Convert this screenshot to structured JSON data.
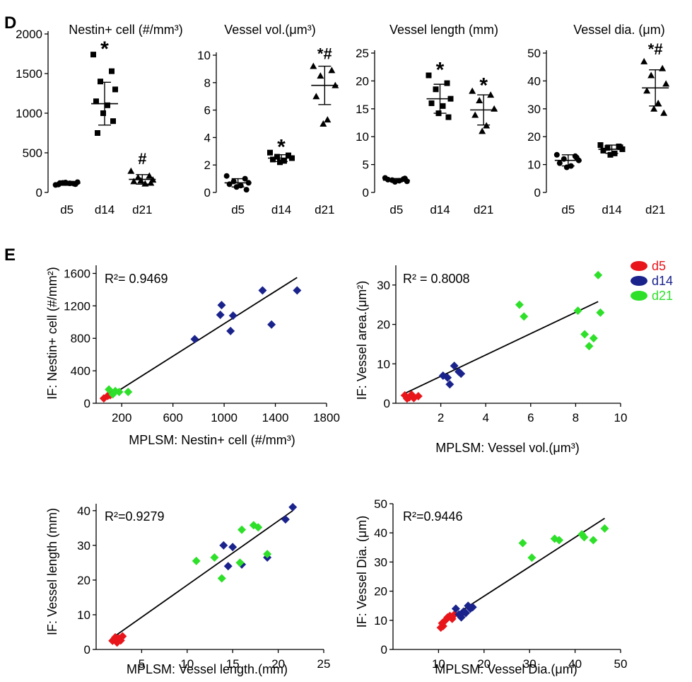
{
  "panel_labels": {
    "d": "D",
    "e": "E"
  },
  "colors": {
    "d5": "#e8161b",
    "d14": "#1a238c",
    "d21": "#2ee02a",
    "marker": "#000000"
  },
  "legend": {
    "position": "top-right",
    "items": [
      "d5",
      "d14",
      "d21"
    ]
  },
  "chart_data": [
    {
      "panel": "D",
      "type": "scatter",
      "title": "Nestin+ cell (#/mm³)",
      "categories": [
        "d5",
        "d14",
        "d21"
      ],
      "ylim": [
        0,
        2000
      ],
      "yticks": [
        0,
        500,
        1000,
        1500,
        2000
      ],
      "ytick_labels": [
        "0",
        "500",
        "1000",
        "1500",
        "2000"
      ],
      "groups": [
        {
          "name": "d5",
          "marker": "circle",
          "mean": 115,
          "sd": 25,
          "points": [
            95,
            110,
            120,
            130,
            100,
            115,
            125,
            105,
            118
          ],
          "annotation": ""
        },
        {
          "name": "d14",
          "marker": "square",
          "mean": 1120,
          "sd": 270,
          "points": [
            1740,
            1530,
            1400,
            1300,
            1150,
            1100,
            1000,
            900,
            750
          ],
          "annotation": "*"
        },
        {
          "name": "d21",
          "marker": "triangle",
          "mean": 165,
          "sd": 60,
          "points": [
            270,
            210,
            190,
            160,
            140,
            110,
            150,
            120
          ],
          "annotation": "#"
        }
      ]
    },
    {
      "panel": "D",
      "type": "scatter",
      "title": "Vessel vol.(μm³)",
      "categories": [
        "d5",
        "d14",
        "d21"
      ],
      "ylim": [
        0,
        10
      ],
      "yticks": [
        0,
        2,
        4,
        6,
        8,
        10
      ],
      "ytick_labels": [
        "0",
        "2",
        "4",
        "6",
        "8",
        "10"
      ],
      "groups": [
        {
          "name": "d5",
          "marker": "circle",
          "mean": 0.7,
          "sd": 0.3,
          "points": [
            1.2,
            1.0,
            0.8,
            0.7,
            0.6,
            0.5,
            0.4,
            0.2
          ],
          "annotation": ""
        },
        {
          "name": "d14",
          "marker": "square",
          "mean": 2.5,
          "sd": 0.25,
          "points": [
            2.9,
            2.7,
            2.6,
            2.5,
            2.4,
            2.3,
            2.2
          ],
          "annotation": "*"
        },
        {
          "name": "d21",
          "marker": "triangle",
          "mean": 7.8,
          "sd": 1.4,
          "points": [
            9.2,
            8.9,
            8.5,
            7.8,
            7.0,
            5.3,
            5.0
          ],
          "annotation": "*#"
        }
      ]
    },
    {
      "panel": "D",
      "type": "scatter",
      "title": "Vessel length (mm)",
      "categories": [
        "d5",
        "d14",
        "d21"
      ],
      "ylim": [
        0,
        25
      ],
      "yticks": [
        0,
        5,
        10,
        15,
        20,
        25
      ],
      "ytick_labels": [
        "0",
        "5",
        "10",
        "15",
        "20",
        "25"
      ],
      "groups": [
        {
          "name": "d5",
          "marker": "circle",
          "mean": 2.2,
          "sd": 0.3,
          "points": [
            2.6,
            2.4,
            2.2,
            2.0,
            2.3,
            2.1,
            1.9,
            2.5
          ],
          "annotation": ""
        },
        {
          "name": "d14",
          "marker": "square",
          "mean": 16.8,
          "sd": 2.6,
          "points": [
            21.0,
            19.6,
            18.5,
            16.8,
            16.0,
            15.5,
            14.2,
            13.5
          ],
          "annotation": "*"
        },
        {
          "name": "d21",
          "marker": "triangle",
          "mean": 14.8,
          "sd": 2.7,
          "points": [
            18.2,
            17.5,
            16.5,
            15.0,
            13.9,
            12.0,
            11.0
          ],
          "annotation": "*"
        }
      ]
    },
    {
      "panel": "D",
      "type": "scatter",
      "title": "Vessel  dia. (μm)",
      "categories": [
        "d5",
        "d14",
        "d21"
      ],
      "ylim": [
        0,
        50
      ],
      "yticks": [
        0,
        10,
        20,
        30,
        40,
        50
      ],
      "ytick_labels": [
        "0",
        "10",
        "20",
        "30",
        "40",
        "50"
      ],
      "groups": [
        {
          "name": "d5",
          "marker": "circle",
          "mean": 11.5,
          "sd": 2.0,
          "points": [
            13.5,
            13.0,
            12.0,
            11.5,
            10.5,
            9.5,
            9.0,
            12.5
          ],
          "annotation": ""
        },
        {
          "name": "d14",
          "marker": "square",
          "mean": 15.5,
          "sd": 1.5,
          "points": [
            17.0,
            16.5,
            16.0,
            15.5,
            15.0,
            14.0,
            13.5,
            16.2
          ],
          "annotation": ""
        },
        {
          "name": "d21",
          "marker": "triangle",
          "mean": 37.5,
          "sd": 6.5,
          "points": [
            47.0,
            44.5,
            42.0,
            39.0,
            36.5,
            32.0,
            30.0,
            28.5
          ],
          "annotation": "*#"
        }
      ]
    },
    {
      "panel": "E",
      "type": "scatter",
      "r2": "R²= 0.9469",
      "xlabel": "MPLSM: Nestin+ cell (#/mm³)",
      "ylabel": "IF: Nestin+ cell (#/mm²)",
      "xlim": [
        0,
        1800
      ],
      "ylim": [
        0,
        1700
      ],
      "xticks": [
        200,
        600,
        1000,
        1400,
        1800
      ],
      "xtick_labels": [
        "200",
        "600",
        "1000",
        "1400",
        "1800"
      ],
      "yticks": [
        0,
        400,
        800,
        1200,
        1600
      ],
      "ytick_labels": [
        "0",
        "400",
        "800",
        "1200",
        "1600"
      ],
      "fit": [
        [
          50,
          30
        ],
        [
          1570,
          1550
        ]
      ],
      "series": [
        {
          "name": "d5",
          "points": [
            [
              60,
              60
            ],
            [
              90,
              90
            ],
            [
              110,
              100
            ],
            [
              120,
              130
            ]
          ]
        },
        {
          "name": "d14",
          "points": [
            [
              770,
              790
            ],
            [
              970,
              1090
            ],
            [
              980,
              1210
            ],
            [
              1050,
              890
            ],
            [
              1070,
              1080
            ],
            [
              1300,
              1390
            ],
            [
              1370,
              970
            ],
            [
              1570,
              1390
            ]
          ]
        },
        {
          "name": "d21",
          "points": [
            [
              100,
              170
            ],
            [
              130,
              110
            ],
            [
              150,
              150
            ],
            [
              180,
              140
            ],
            [
              250,
              140
            ]
          ]
        }
      ]
    },
    {
      "panel": "E",
      "type": "scatter",
      "r2": "R² = 0.8008",
      "xlabel": "MPLSM: Vessel vol.(μm³)",
      "ylabel": "IF: Vessel area.(μm²)",
      "xlim": [
        0,
        10
      ],
      "ylim": [
        0,
        35
      ],
      "xticks": [
        2,
        4,
        6,
        8,
        10
      ],
      "xtick_labels": [
        "2",
        "4",
        "6",
        "8",
        "10"
      ],
      "yticks": [
        0,
        10,
        20,
        30
      ],
      "ytick_labels": [
        "0",
        "10",
        "20",
        "30"
      ],
      "fit": [
        [
          0.4,
          2.5
        ],
        [
          9.0,
          25.8
        ]
      ],
      "series": [
        {
          "name": "d5",
          "points": [
            [
              0.4,
              2.0
            ],
            [
              0.6,
              1.5
            ],
            [
              0.7,
              2.2
            ],
            [
              0.8,
              1.3
            ],
            [
              1.0,
              1.8
            ],
            [
              0.5,
              1.2
            ]
          ]
        },
        {
          "name": "d14",
          "points": [
            [
              2.1,
              7.0
            ],
            [
              2.3,
              6.5
            ],
            [
              2.4,
              4.8
            ],
            [
              2.6,
              9.5
            ],
            [
              2.8,
              8.0
            ],
            [
              2.9,
              7.5
            ]
          ]
        },
        {
          "name": "d21",
          "points": [
            [
              5.5,
              25.0
            ],
            [
              5.7,
              22.0
            ],
            [
              8.1,
              23.5
            ],
            [
              8.4,
              17.5
            ],
            [
              8.6,
              14.5
            ],
            [
              8.8,
              16.5
            ],
            [
              9.0,
              32.5
            ],
            [
              9.1,
              23.0
            ]
          ]
        }
      ]
    },
    {
      "panel": "E",
      "type": "scatter",
      "r2": "R²=0.9279",
      "xlabel": "MPLSM: Vessel length.(mm)",
      "ylabel": "IF: Vessel length (mm)",
      "xlim": [
        0,
        25
      ],
      "ylim": [
        0,
        42
      ],
      "xticks": [
        5,
        10,
        15,
        20,
        25
      ],
      "xtick_labels": [
        "5",
        "10",
        "15",
        "20",
        "25"
      ],
      "yticks": [
        0,
        10,
        20,
        30,
        40
      ],
      "ytick_labels": [
        "0",
        "10",
        "20",
        "30",
        "40"
      ],
      "fit": [
        [
          1.6,
          3.0
        ],
        [
          21.6,
          40.0
        ]
      ],
      "series": [
        {
          "name": "d5",
          "points": [
            [
              1.8,
              2.5
            ],
            [
              2.1,
              3.5
            ],
            [
              2.3,
              2.0
            ],
            [
              2.5,
              3.2
            ],
            [
              2.7,
              2.6
            ],
            [
              2.9,
              3.8
            ]
          ]
        },
        {
          "name": "d14",
          "points": [
            [
              14.0,
              30.0
            ],
            [
              14.5,
              24.0
            ],
            [
              15.0,
              29.5
            ],
            [
              16.0,
              24.5
            ],
            [
              18.8,
              26.5
            ],
            [
              20.8,
              37.5
            ],
            [
              21.6,
              41.0
            ]
          ]
        },
        {
          "name": "d21",
          "points": [
            [
              11.0,
              25.5
            ],
            [
              13.0,
              26.5
            ],
            [
              13.8,
              20.5
            ],
            [
              15.8,
              25.0
            ],
            [
              16.0,
              34.5
            ],
            [
              17.3,
              35.8
            ],
            [
              17.8,
              35.2
            ],
            [
              18.8,
              27.5
            ]
          ]
        }
      ]
    },
    {
      "panel": "E",
      "type": "scatter",
      "r2": "R²=0.9446",
      "xlabel": "MPLSM: Vessel Dia.(μm)",
      "ylabel": "IF: Vessel Dia. (μm)",
      "xlim": [
        0,
        50
      ],
      "ylim": [
        0,
        50
      ],
      "xticks": [
        10,
        20,
        30,
        40,
        50
      ],
      "xtick_labels": [
        "10",
        "20",
        "30",
        "40",
        "50"
      ],
      "yticks": [
        0,
        10,
        20,
        30,
        40,
        50
      ],
      "ytick_labels": [
        "0",
        "10",
        "20",
        "30",
        "40",
        "50"
      ],
      "fit": [
        [
          10.3,
          8.5
        ],
        [
          46.5,
          45.0
        ]
      ],
      "series": [
        {
          "name": "d5",
          "points": [
            [
              10.5,
              7.5
            ],
            [
              11.0,
              8.0
            ],
            [
              11.5,
              10.0
            ],
            [
              12.0,
              11.0
            ],
            [
              12.5,
              11.5
            ],
            [
              13.0,
              10.5
            ],
            [
              13.5,
              12.0
            ],
            [
              10.8,
              9.0
            ]
          ]
        },
        {
          "name": "d14",
          "points": [
            [
              13.8,
              14.0
            ],
            [
              14.5,
              12.0
            ],
            [
              15.0,
              11.0
            ],
            [
              15.5,
              13.0
            ],
            [
              16.0,
              12.5
            ],
            [
              16.5,
              15.0
            ],
            [
              17.0,
              14.0
            ],
            [
              17.5,
              14.5
            ]
          ]
        },
        {
          "name": "d21",
          "points": [
            [
              28.5,
              36.5
            ],
            [
              30.5,
              31.5
            ],
            [
              35.5,
              38.0
            ],
            [
              36.5,
              37.5
            ],
            [
              41.5,
              39.5
            ],
            [
              42.0,
              38.5
            ],
            [
              44.0,
              37.5
            ],
            [
              46.5,
              41.5
            ]
          ]
        }
      ]
    }
  ]
}
